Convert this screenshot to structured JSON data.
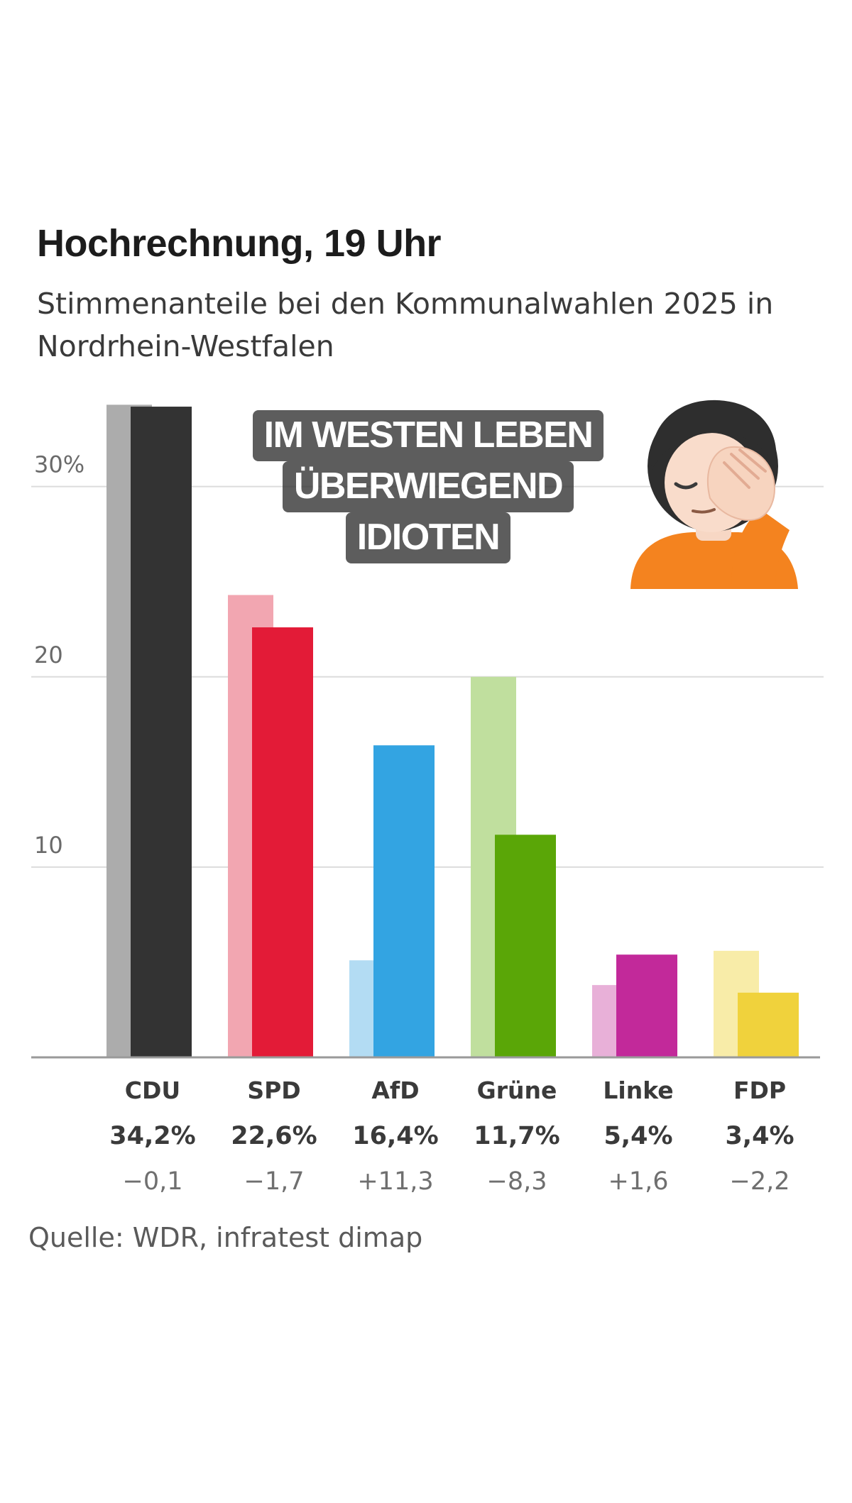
{
  "chart_data": {
    "type": "bar",
    "title": "Hochrechnung, 19 Uhr",
    "subtitle": "Stimmenanteile bei den Kommunalwahlen 2025 in Nordrhein-Westfalen",
    "categories": [
      "CDU",
      "SPD",
      "AfD",
      "Grüne",
      "Linke",
      "FDP"
    ],
    "series": [
      {
        "values": [
          34.3,
          24.3,
          5.1,
          20.0,
          3.8,
          5.6
        ]
      },
      {
        "values": [
          34.2,
          22.6,
          16.4,
          11.7,
          5.4,
          3.4
        ]
      }
    ],
    "value_labels": [
      "34,2%",
      "22,6%",
      "16,4%",
      "11,7%",
      "5,4%",
      "3,4%"
    ],
    "change_labels": [
      "−0,1",
      "−1,7",
      "+11,3",
      "−8,3",
      "+1,6",
      "−2,2"
    ],
    "colors_current": [
      "#333333",
      "#e31b37",
      "#33a4e2",
      "#5aa607",
      "#c2299a",
      "#f0d23c"
    ],
    "colors_previous": [
      "#acacac",
      "#f2a6b1",
      "#b3dcf3",
      "#c0df9e",
      "#e8b0d8",
      "#f8eca8"
    ],
    "yticks": [
      10,
      20,
      30
    ],
    "ytick_labels": [
      "10",
      "20",
      "30%"
    ],
    "ylim": [
      0,
      34.5
    ],
    "grid": true,
    "xlabel": "",
    "ylabel": ""
  },
  "overlay": {
    "lines": [
      "IM WESTEN LEBEN",
      "ÜBERWIEGEND",
      "IDIOTEN"
    ],
    "emoji": "person-facepalming"
  },
  "source": "Quelle: WDR, infratest dimap"
}
